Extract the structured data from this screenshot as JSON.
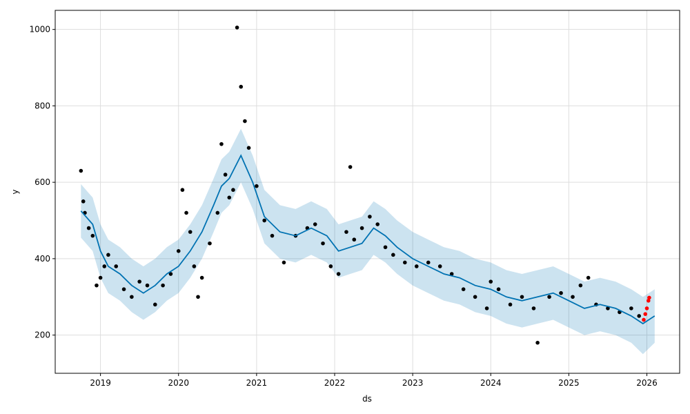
{
  "chart_data": {
    "type": "line",
    "xlabel": "ds",
    "ylabel": "y",
    "xlim": [
      2018.42,
      2026.42
    ],
    "ylim": [
      100,
      1050
    ],
    "grid": true,
    "x_ticks": [
      {
        "value": 2019,
        "label": "2019"
      },
      {
        "value": 2020,
        "label": "2020"
      },
      {
        "value": 2021,
        "label": "2021"
      },
      {
        "value": 2022,
        "label": "2022"
      },
      {
        "value": 2023,
        "label": "2023"
      },
      {
        "value": 2024,
        "label": "2024"
      },
      {
        "value": 2025,
        "label": "2025"
      },
      {
        "value": 2026,
        "label": "2026"
      }
    ],
    "y_ticks": [
      {
        "value": 200,
        "label": "200"
      },
      {
        "value": 400,
        "label": "400"
      },
      {
        "value": 600,
        "label": "600"
      },
      {
        "value": 800,
        "label": "800"
      },
      {
        "value": 1000,
        "label": "1000"
      }
    ],
    "colors": {
      "forecast_line": "#0072B2",
      "uncertainty_band": "#0072B2",
      "observed_points": "#000000",
      "recent_points": "#ff0000",
      "grid": "#dddddd"
    },
    "forecast": {
      "x": [
        2018.75,
        2018.9,
        2019.0,
        2019.1,
        2019.25,
        2019.4,
        2019.55,
        2019.7,
        2019.85,
        2020.0,
        2020.15,
        2020.3,
        2020.45,
        2020.55,
        2020.65,
        2020.8,
        2020.95,
        2021.1,
        2021.3,
        2021.5,
        2021.7,
        2021.9,
        2022.05,
        2022.2,
        2022.35,
        2022.5,
        2022.65,
        2022.8,
        2023.0,
        2023.2,
        2023.4,
        2023.6,
        2023.8,
        2024.0,
        2024.2,
        2024.4,
        2024.6,
        2024.8,
        2025.0,
        2025.2,
        2025.4,
        2025.6,
        2025.8,
        2025.95,
        2026.1
      ],
      "yhat": [
        525,
        490,
        420,
        380,
        360,
        330,
        310,
        330,
        360,
        380,
        420,
        470,
        540,
        590,
        610,
        670,
        600,
        510,
        470,
        460,
        480,
        460,
        420,
        430,
        440,
        480,
        460,
        430,
        400,
        380,
        360,
        350,
        330,
        320,
        300,
        290,
        300,
        310,
        290,
        270,
        280,
        270,
        250,
        230,
        250
      ],
      "lower": [
        455,
        420,
        350,
        310,
        290,
        260,
        240,
        260,
        290,
        310,
        350,
        400,
        470,
        520,
        540,
        600,
        530,
        440,
        400,
        390,
        410,
        390,
        350,
        360,
        370,
        410,
        390,
        360,
        330,
        310,
        290,
        280,
        260,
        250,
        230,
        220,
        230,
        240,
        220,
        200,
        210,
        200,
        180,
        150,
        180
      ],
      "upper": [
        595,
        560,
        490,
        450,
        430,
        400,
        380,
        400,
        430,
        450,
        490,
        540,
        610,
        660,
        680,
        740,
        670,
        580,
        540,
        530,
        550,
        530,
        490,
        500,
        510,
        550,
        530,
        500,
        470,
        450,
        430,
        420,
        400,
        390,
        370,
        360,
        370,
        380,
        360,
        340,
        350,
        340,
        320,
        300,
        320
      ]
    },
    "observed": {
      "x": [
        2018.75,
        2018.78,
        2018.8,
        2018.85,
        2018.9,
        2018.95,
        2019.0,
        2019.05,
        2019.1,
        2019.2,
        2019.3,
        2019.4,
        2019.5,
        2019.6,
        2019.7,
        2019.8,
        2019.9,
        2020.0,
        2020.05,
        2020.1,
        2020.15,
        2020.2,
        2020.25,
        2020.3,
        2020.4,
        2020.5,
        2020.55,
        2020.6,
        2020.65,
        2020.7,
        2020.75,
        2020.8,
        2020.85,
        2020.9,
        2021.0,
        2021.1,
        2021.2,
        2021.35,
        2021.5,
        2021.65,
        2021.75,
        2021.85,
        2021.95,
        2022.05,
        2022.15,
        2022.2,
        2022.25,
        2022.35,
        2022.45,
        2022.55,
        2022.65,
        2022.75,
        2022.9,
        2023.05,
        2023.2,
        2023.35,
        2023.5,
        2023.65,
        2023.8,
        2023.95,
        2024.0,
        2024.1,
        2024.25,
        2024.4,
        2024.55,
        2024.6,
        2024.75,
        2024.9,
        2025.05,
        2025.15,
        2025.25,
        2025.35,
        2025.5,
        2025.65,
        2025.8,
        2025.9
      ],
      "y": [
        630,
        550,
        520,
        480,
        460,
        330,
        350,
        380,
        410,
        380,
        320,
        300,
        340,
        330,
        280,
        330,
        360,
        420,
        580,
        520,
        470,
        380,
        300,
        350,
        440,
        520,
        700,
        620,
        560,
        580,
        1005,
        850,
        760,
        690,
        590,
        500,
        460,
        390,
        460,
        480,
        490,
        440,
        380,
        360,
        470,
        640,
        450,
        480,
        510,
        490,
        430,
        410,
        390,
        380,
        390,
        380,
        360,
        320,
        300,
        270,
        340,
        320,
        280,
        300,
        270,
        180,
        300,
        310,
        300,
        330,
        350,
        280,
        270,
        260,
        270,
        250
      ],
      "recent_x": [
        2025.96,
        2025.98,
        2026.0,
        2026.02,
        2026.03
      ],
      "recent_y": [
        240,
        255,
        270,
        290,
        298
      ]
    }
  }
}
